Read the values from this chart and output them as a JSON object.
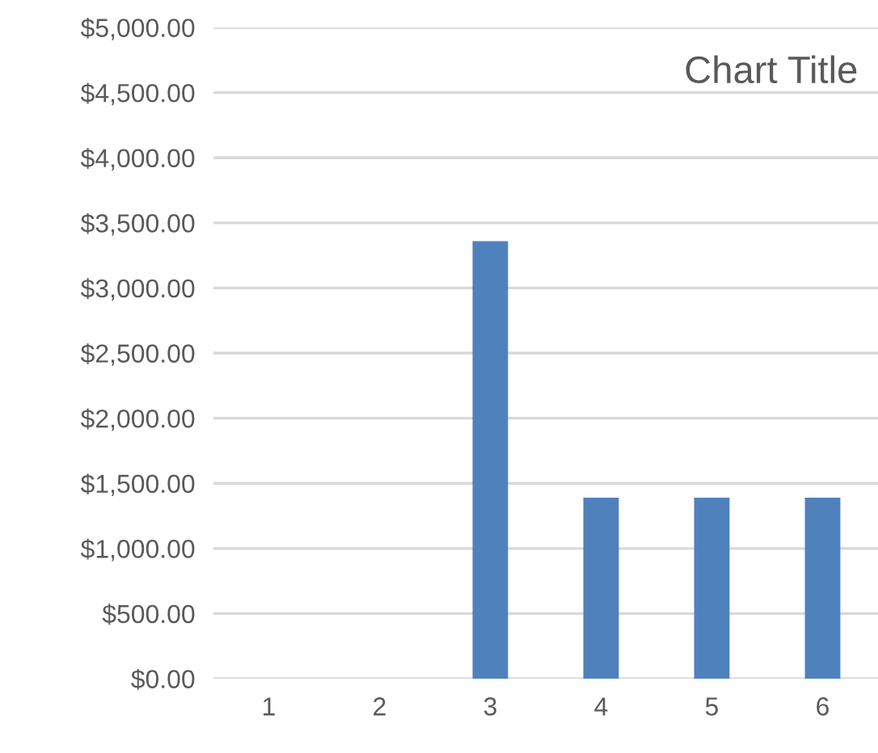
{
  "chart_data": {
    "type": "bar",
    "title": "Chart Title",
    "categories": [
      "1",
      "2",
      "3",
      "4",
      "5",
      "6"
    ],
    "values": [
      0,
      0,
      3360,
      1390,
      1390,
      1390
    ],
    "color": "#4f81bd",
    "ylim": [
      0,
      5000
    ],
    "yticks": [
      {
        "value": 0,
        "label": "$0.00"
      },
      {
        "value": 500,
        "label": "$500.00"
      },
      {
        "value": 1000,
        "label": "$1,000.00"
      },
      {
        "value": 1500,
        "label": "$1,500.00"
      },
      {
        "value": 2000,
        "label": "$2,000.00"
      },
      {
        "value": 2500,
        "label": "$2,500.00"
      },
      {
        "value": 3000,
        "label": "$3,000.00"
      },
      {
        "value": 3500,
        "label": "$3,500.00"
      },
      {
        "value": 4000,
        "label": "$4,000.00"
      },
      {
        "value": 4500,
        "label": "$4,500.00"
      },
      {
        "value": 5000,
        "label": "$5,000.00"
      }
    ],
    "grid": "y",
    "legend": false
  }
}
